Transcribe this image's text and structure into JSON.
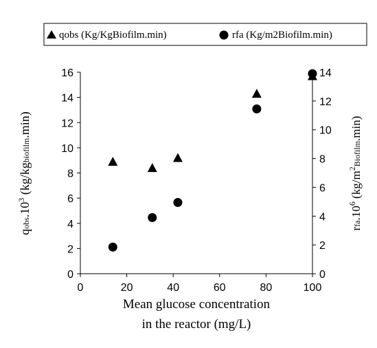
{
  "chart_data": {
    "type": "scatter",
    "legend": {
      "placement": "top",
      "entries": [
        {
          "name": "qobs (Kg/KgBiofilm.min)",
          "marker": "triangle"
        },
        {
          "name": "rfa (Kg/m2Biofilm.min)",
          "marker": "circle"
        }
      ]
    },
    "xlabel_line1": "Mean glucose concentration",
    "xlabel_line2": "in the reactor (mg/L)",
    "xlim": [
      0,
      100
    ],
    "xticks": [
      "0",
      "20",
      "40",
      "60",
      "80",
      "100"
    ],
    "y_left": {
      "label_parts": [
        "q",
        "obs",
        ".10",
        "3",
        " (kg/kg",
        "biofilm",
        ".min)"
      ],
      "lim": [
        0,
        16
      ],
      "ticks": [
        "0",
        "2",
        "4",
        "6",
        "8",
        "10",
        "12",
        "14",
        "16"
      ]
    },
    "y_right": {
      "label_parts": [
        "r",
        "fa",
        ".10",
        "6",
        " (kg/m",
        "2",
        "Biofilm",
        ".min)"
      ],
      "lim": [
        0,
        14
      ],
      "ticks": [
        "0",
        "2",
        "4",
        "6",
        "8",
        "10",
        "12",
        "14"
      ]
    },
    "series": [
      {
        "name": "qobs (Kg/KgBiofilm.min)",
        "axis": "left",
        "marker": "triangle",
        "color": "#000000",
        "x": [
          14,
          31,
          42,
          76,
          100
        ],
        "y": [
          8.9,
          8.4,
          9.2,
          14.3,
          15.7
        ]
      },
      {
        "name": "rfa (Kg/m2Biofilm.min)",
        "axis": "right",
        "marker": "circle",
        "color": "#000000",
        "x": [
          14,
          31,
          42,
          76,
          100
        ],
        "y": [
          1.85,
          3.9,
          4.95,
          11.45,
          13.9
        ]
      }
    ],
    "grid": false
  }
}
